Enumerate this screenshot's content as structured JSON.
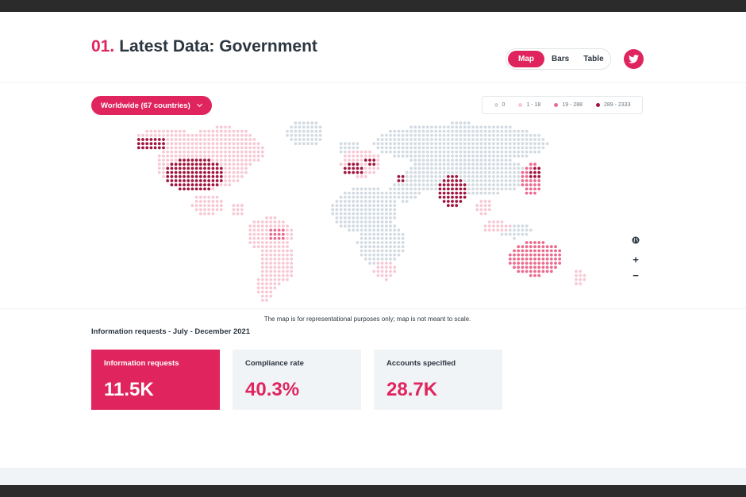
{
  "header": {
    "section_number": "01.",
    "title": "Latest Data: Government"
  },
  "view_toggle": [
    {
      "label": "Map",
      "active": true
    },
    {
      "label": "Bars",
      "active": false
    },
    {
      "label": "Table",
      "active": false
    }
  ],
  "share": {
    "icon": "twitter-icon"
  },
  "region_select": {
    "label": "Worldwide (67 countries)",
    "icon": "chevron-down-icon"
  },
  "legend": [
    {
      "label": "0",
      "color": "#d3dbe2"
    },
    {
      "label": "1 - 18",
      "color": "#f7c9d5"
    },
    {
      "label": "19 - 288",
      "color": "#eb6a8f"
    },
    {
      "label": "289 - 2333",
      "color": "#a0153e"
    }
  ],
  "map_controls": [
    {
      "name": "globe-icon",
      "label": ""
    },
    {
      "name": "zoom-in-button",
      "label": "+"
    },
    {
      "name": "zoom-out-button",
      "label": "−"
    }
  ],
  "disclaimer": "The map is for representational purposes only; map is not meant to scale.",
  "period_label": "Information requests - July - December 2021",
  "cards": [
    {
      "label": "Information requests",
      "value": "11.5K",
      "active": true
    },
    {
      "label": "Compliance rate",
      "value": "40.3%",
      "active": false
    },
    {
      "label": "Accounts specified",
      "value": "28.7K",
      "active": false
    }
  ],
  "colors": {
    "accent": "#e0245e",
    "text": "#2c3640",
    "card_bg": "#f1f4f7"
  }
}
